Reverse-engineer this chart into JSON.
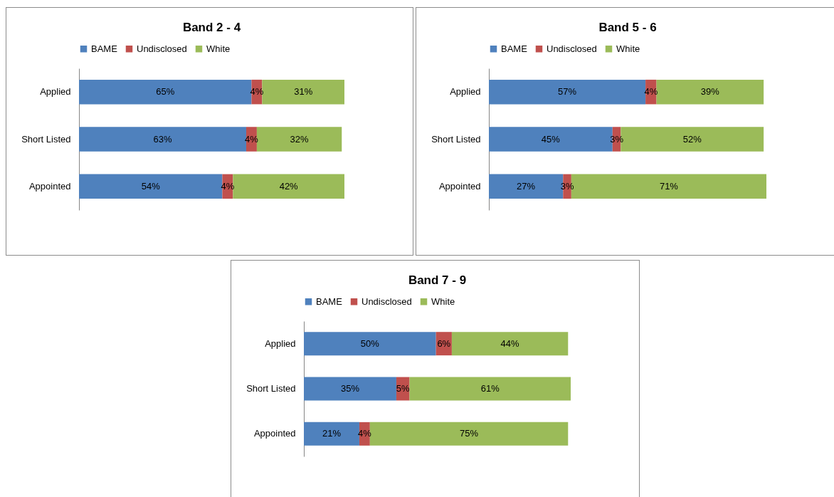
{
  "chart_data": [
    {
      "type": "bar",
      "title": "Band 2 - 4",
      "orientation": "horizontal",
      "stacked": true,
      "legend": "top",
      "tick_labels": "y",
      "categories": [
        "Applied",
        "Short Listed",
        "Appointed"
      ],
      "series": [
        {
          "name": "BAME",
          "color": "#4f81bd",
          "values": [
            65,
            63,
            54
          ],
          "value_labels": [
            "65%",
            "63%",
            "54%"
          ]
        },
        {
          "name": "Undisclosed",
          "color": "#c0504d",
          "values": [
            4,
            4,
            4
          ],
          "value_labels": [
            "4%",
            "4%",
            "4%"
          ]
        },
        {
          "name": "White",
          "color": "#9bbb59",
          "values": [
            31,
            32,
            42
          ],
          "value_labels": [
            "31%",
            "32%",
            "42%"
          ]
        }
      ]
    },
    {
      "type": "bar",
      "title": "Band 5 - 6",
      "orientation": "horizontal",
      "stacked": true,
      "legend": "top",
      "tick_labels": "y",
      "categories": [
        "Applied",
        "Short Listed",
        "Appointed"
      ],
      "series": [
        {
          "name": "BAME",
          "color": "#4f81bd",
          "values": [
            57,
            45,
            27
          ],
          "value_labels": [
            "57%",
            "45%",
            "27%"
          ]
        },
        {
          "name": "Undisclosed",
          "color": "#c0504d",
          "values": [
            4,
            3,
            3
          ],
          "value_labels": [
            "4%",
            "3%",
            "3%"
          ]
        },
        {
          "name": "White",
          "color": "#9bbb59",
          "values": [
            39,
            52,
            71
          ],
          "value_labels": [
            "39%",
            "52%",
            "71%"
          ]
        }
      ]
    },
    {
      "type": "bar",
      "title": "Band 7 - 9",
      "orientation": "horizontal",
      "stacked": true,
      "legend": "top",
      "tick_labels": "y",
      "categories": [
        "Applied",
        "Short Listed",
        "Appointed"
      ],
      "series": [
        {
          "name": "BAME",
          "color": "#4f81bd",
          "values": [
            50,
            35,
            21
          ],
          "value_labels": [
            "50%",
            "35%",
            "21%"
          ]
        },
        {
          "name": "Undisclosed",
          "color": "#c0504d",
          "values": [
            6,
            5,
            4
          ],
          "value_labels": [
            "6%",
            "5%",
            "4%"
          ]
        },
        {
          "name": "White",
          "color": "#9bbb59",
          "values": [
            44,
            61,
            75
          ],
          "value_labels": [
            "44%",
            "61%",
            "75%"
          ]
        }
      ]
    }
  ]
}
